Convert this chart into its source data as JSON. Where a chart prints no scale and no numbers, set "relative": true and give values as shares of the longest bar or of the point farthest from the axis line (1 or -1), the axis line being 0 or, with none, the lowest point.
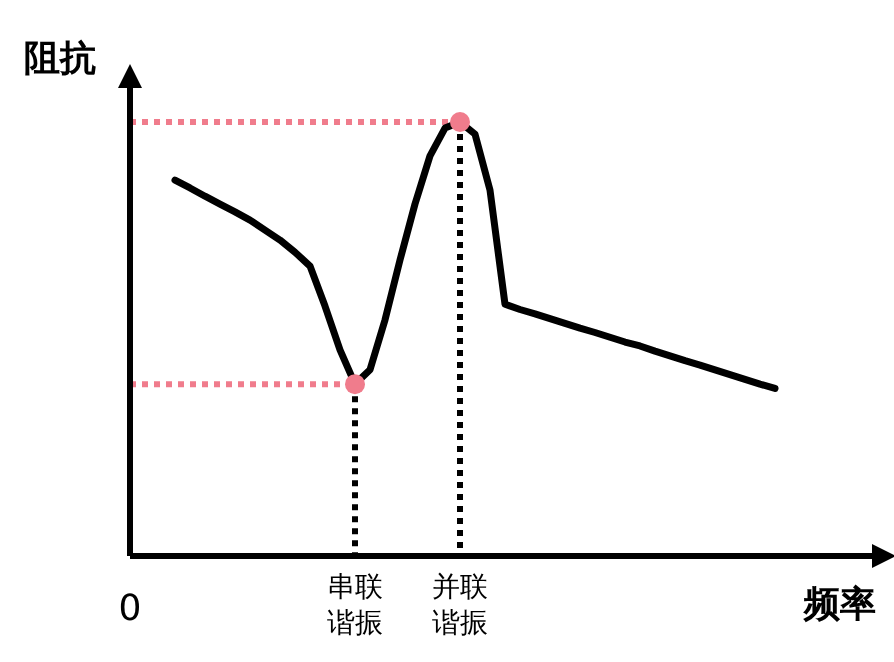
{
  "chart_data": {
    "type": "line",
    "relative": true,
    "xlabel": "频率",
    "ylabel": "阻抗",
    "annotations": [
      "0",
      "串联谐振",
      "并联谐振"
    ],
    "categories": [
      null,
      null,
      null,
      null,
      null,
      null,
      null,
      null,
      null,
      null,
      null,
      null,
      null,
      null,
      null,
      null,
      null,
      null,
      null,
      null,
      null,
      null,
      null,
      null,
      null,
      null,
      null,
      null,
      null,
      null,
      null,
      null,
      null,
      null,
      null,
      null,
      null,
      null,
      null,
      null,
      null,
      null,
      null,
      null,
      null,
      null,
      null,
      null,
      null,
      null,
      null
    ],
    "series": [
      {
        "color": "#000000",
        "values": [
          null,
          null,
          null,
          0.866,
          0.848,
          0.829,
          0.811,
          0.793,
          0.774,
          0.751,
          0.728,
          0.7,
          0.668,
          0.576,
          0.475,
          0.396,
          0.429,
          0.544,
          0.682,
          0.811,
          0.922,
          0.986,
          1,
          0.972,
          0.843,
          0.58,
          0.568,
          0.558,
          0.547,
          0.536,
          0.525,
          0.515,
          0.504,
          0.493,
          0.484,
          0.472,
          0.461,
          0.45,
          0.44,
          0.429,
          0.418,
          0.407,
          0.396,
          0.386,
          null,
          null,
          null,
          null,
          null,
          null,
          null
        ]
      }
    ],
    "ref_lines": [
      {
        "axis": "y",
        "value": 0.396,
        "color": "#f07c8c",
        "line_style": "dotted"
      },
      {
        "axis": "y",
        "value": 1,
        "color": "#f07c8c",
        "line_style": "dotted"
      }
    ]
  }
}
